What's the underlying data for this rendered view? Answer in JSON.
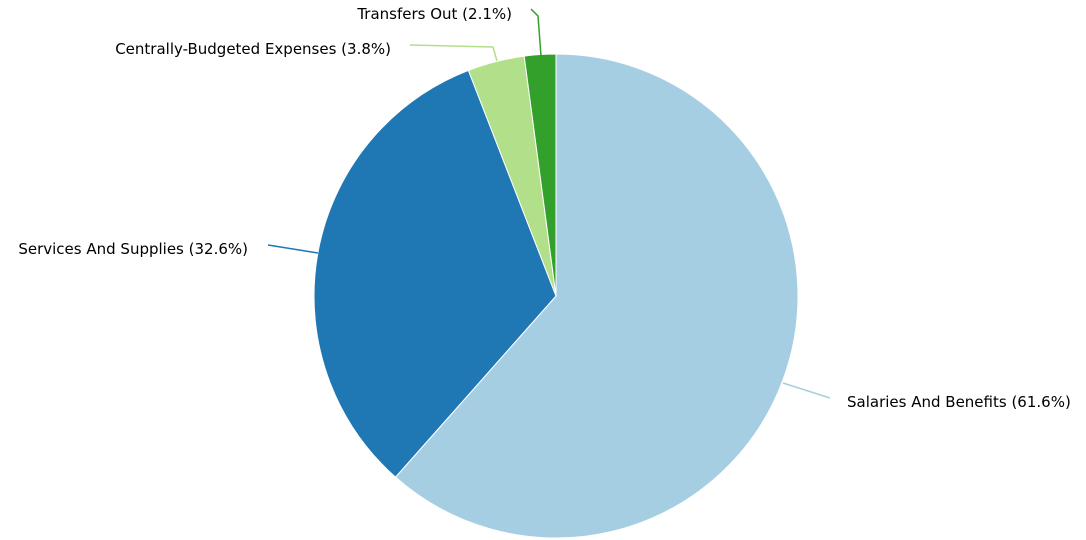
{
  "chart_data": {
    "type": "pie",
    "title": "",
    "slices": [
      {
        "label": "Salaries And Benefits (61.6%)",
        "value": 61.6,
        "color": "#a6cee3"
      },
      {
        "label": "Services And Supplies (32.6%)",
        "value": 32.6,
        "color": "#1f78b4"
      },
      {
        "label": "Centrally-Budgeted Expenses (3.8%)",
        "value": 3.8,
        "color": "#b2df8a"
      },
      {
        "label": "Transfers Out (2.1%)",
        "value": 2.1,
        "color": "#33a02c"
      }
    ],
    "start_angle": "12 o'clock",
    "direction": "clockwise",
    "legend": "none",
    "labels": "outside with leader lines"
  }
}
